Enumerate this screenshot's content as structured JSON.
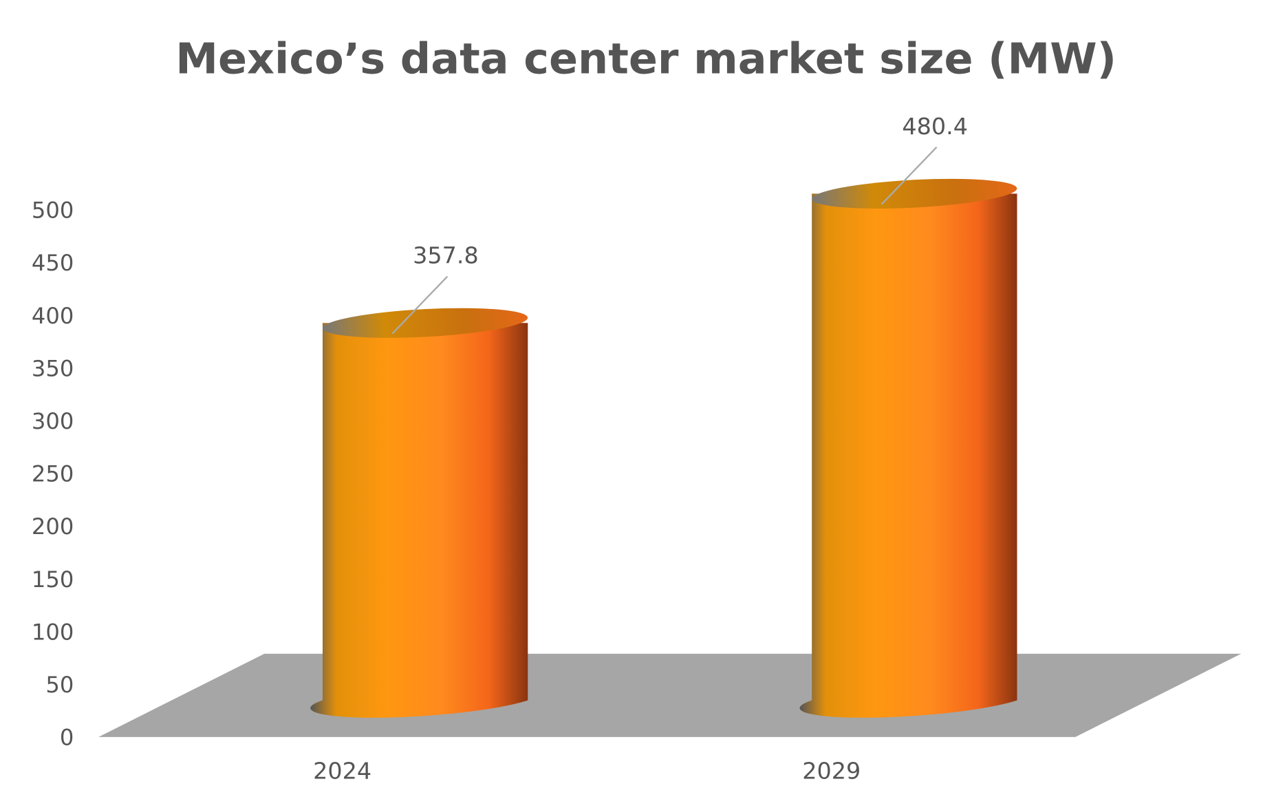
{
  "chart_data": {
    "type": "bar",
    "style": "3d-cylinder",
    "title": "Mexico’s data center market size (MW)",
    "xlabel": "",
    "ylabel": "",
    "categories": [
      "2024",
      "2029"
    ],
    "values": [
      357.8,
      480.4
    ],
    "value_labels": [
      "357.8",
      "480.4"
    ],
    "ylim": [
      0,
      500
    ],
    "yticks": [
      "0",
      "50",
      "100",
      "150",
      "200",
      "250",
      "300",
      "350",
      "400",
      "450",
      "500"
    ],
    "grid": false,
    "legend": "none",
    "colors": {
      "bar": "#ff9410",
      "bar_dark": "#c2430f",
      "floor": "#a6a6a6",
      "text": "#555555"
    }
  }
}
